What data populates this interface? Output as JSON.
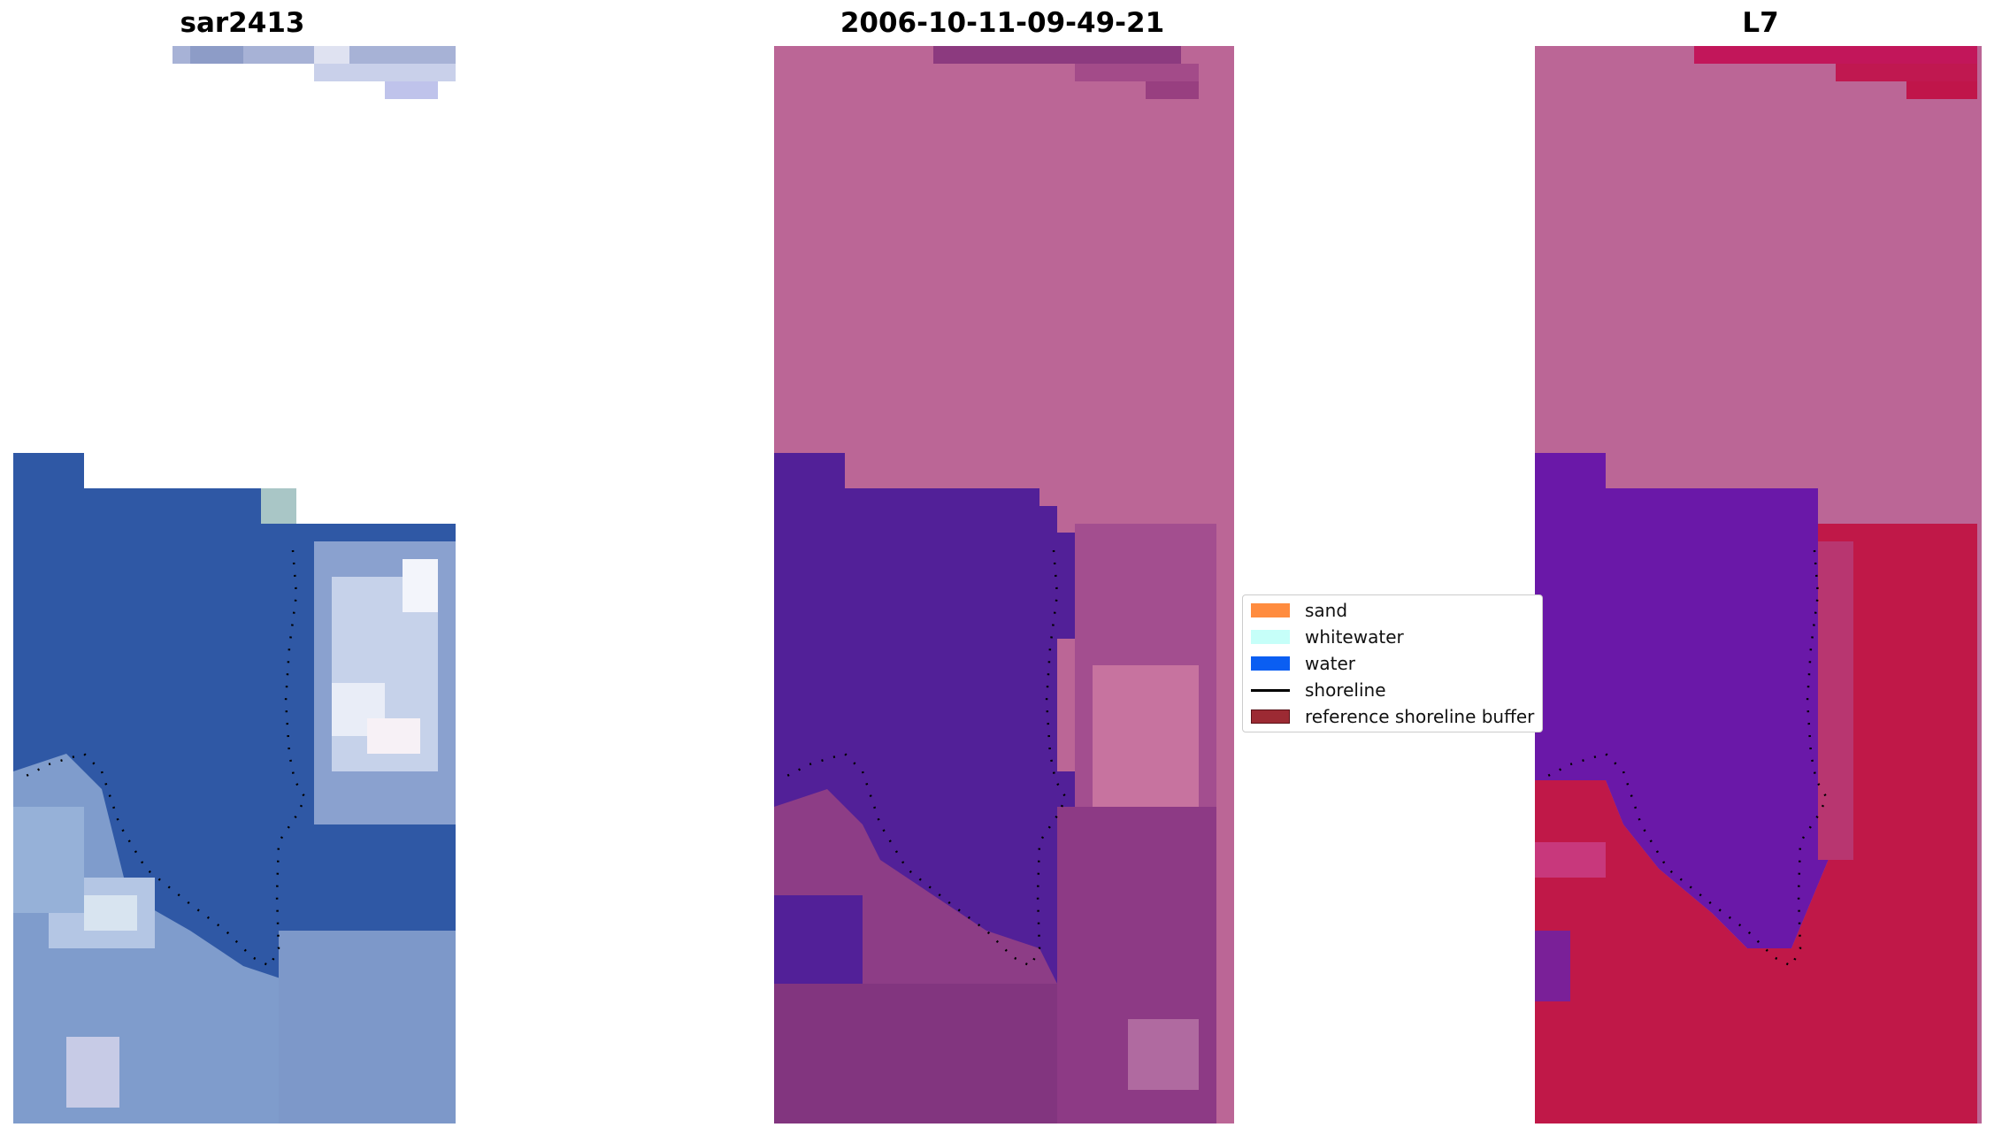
{
  "titles": {
    "panel1": "sar2413",
    "panel2": "2006-10-11-09-49-21",
    "panel3": "L7"
  },
  "legend": {
    "items": [
      {
        "label": "sand",
        "kind": "patch",
        "color": "#ff8c3f"
      },
      {
        "label": "whitewater",
        "kind": "patch",
        "color": "#c6fff9"
      },
      {
        "label": "water",
        "kind": "patch",
        "color": "#0a5ef2"
      },
      {
        "label": "shoreline",
        "kind": "line",
        "color": "#000000"
      },
      {
        "label": "reference shoreline buffer",
        "kind": "patch",
        "color": "#9c2a33"
      }
    ]
  },
  "colors": {
    "background": "#ffffff",
    "panel2_pink": "#bb6696",
    "panel2_purple": "#522098",
    "panel3_red": "#c01848",
    "shoreline_dots": "#000000"
  }
}
